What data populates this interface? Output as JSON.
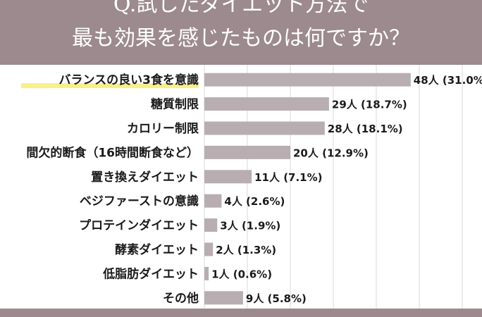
{
  "title_line1": "Q.試したダイエット方法で",
  "title_line2": "最も効果を感じたものは何ですか？",
  "chart_data": {
    "type": "bar",
    "orientation": "horizontal",
    "categories": [
      "バランスの良い3食を意識",
      "糖質制限",
      "カロリー制限",
      "間欠的断食（16時間断食など）",
      "置き換えダイエット",
      "ベジファーストの意識",
      "プロテインダイエット",
      "酵素ダイエット",
      "低脂肪ダイエット",
      "その他"
    ],
    "values": [
      48,
      29,
      28,
      20,
      11,
      4,
      3,
      2,
      1,
      9
    ],
    "data_labels": [
      "48人 (31.0%)",
      "29人 (18.7%)",
      "28人 (18.1%)",
      "20人 (12.9%)",
      "11人 (7.1%)",
      "4人 (2.6%)",
      "3人 (1.9%)",
      "2人 (1.3%)",
      "1人 (0.6%)",
      "9人 (5.8%)"
    ],
    "highlight_index": 0,
    "xlim": [
      0,
      60
    ],
    "grid": true,
    "colors": {
      "bar": "#b8aeb1",
      "header": "#9c8a8e",
      "highlight": "#f7ef8a",
      "grid": "#d9d9d9"
    }
  }
}
